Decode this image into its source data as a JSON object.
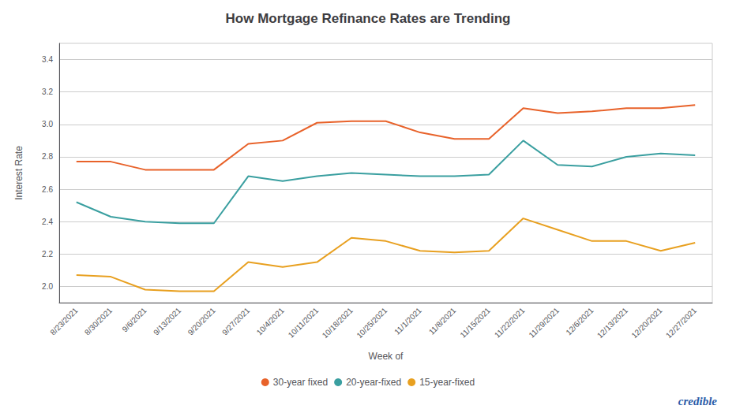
{
  "chart_data": {
    "type": "line",
    "title": "How Mortgage Refinance Rates are Trending",
    "xlabel": "Week of",
    "ylabel": "Interest Rate",
    "categories": [
      "8/23/2021",
      "8/30/2021",
      "9/6/2021",
      "9/13/2021",
      "9/20/2021",
      "9/27/2021",
      "10/4/2021",
      "10/11/2021",
      "10/18/2021",
      "10/25/2021",
      "11/1/2021",
      "11/8/2021",
      "11/15/2021",
      "11/22/2021",
      "11/29/2021",
      "12/6/2021",
      "12/13/2021",
      "12/20/2021",
      "12/27/2021"
    ],
    "series": [
      {
        "name": "30-year fixed",
        "color": "#E8622A",
        "values": [
          2.77,
          2.77,
          2.72,
          2.72,
          2.72,
          2.88,
          2.9,
          3.01,
          3.02,
          3.02,
          2.95,
          2.91,
          2.91,
          3.1,
          3.07,
          3.08,
          3.1,
          3.1,
          3.12
        ]
      },
      {
        "name": "20-year-fixed",
        "color": "#3A9FA0",
        "values": [
          2.52,
          2.43,
          2.4,
          2.39,
          2.39,
          2.68,
          2.65,
          2.68,
          2.7,
          2.69,
          2.68,
          2.68,
          2.69,
          2.9,
          2.75,
          2.74,
          2.8,
          2.82,
          2.81
        ]
      },
      {
        "name": "15-year-fixed",
        "color": "#E8A020",
        "values": [
          2.07,
          2.06,
          1.98,
          1.97,
          1.97,
          2.15,
          2.12,
          2.15,
          2.3,
          2.28,
          2.22,
          2.21,
          2.22,
          2.42,
          2.35,
          2.28,
          2.28,
          2.22,
          2.27
        ]
      }
    ],
    "ylim": [
      1.9,
      3.5
    ],
    "yticks": [
      {
        "value": 2.0,
        "label": "2.0"
      },
      {
        "value": 2.2,
        "label": "2.2"
      },
      {
        "value": 2.4,
        "label": "2.4"
      },
      {
        "value": 2.6,
        "label": "2.6"
      },
      {
        "value": 2.8,
        "label": "2.8"
      },
      {
        "value": 3.0,
        "label": "3.0"
      },
      {
        "value": 3.2,
        "label": "3.2"
      },
      {
        "value": 3.4,
        "label": "3.4"
      }
    ],
    "grid": true,
    "legend": "bottom",
    "annotations": [
      {
        "text": "credible",
        "color": "#2B5BA8"
      }
    ]
  }
}
